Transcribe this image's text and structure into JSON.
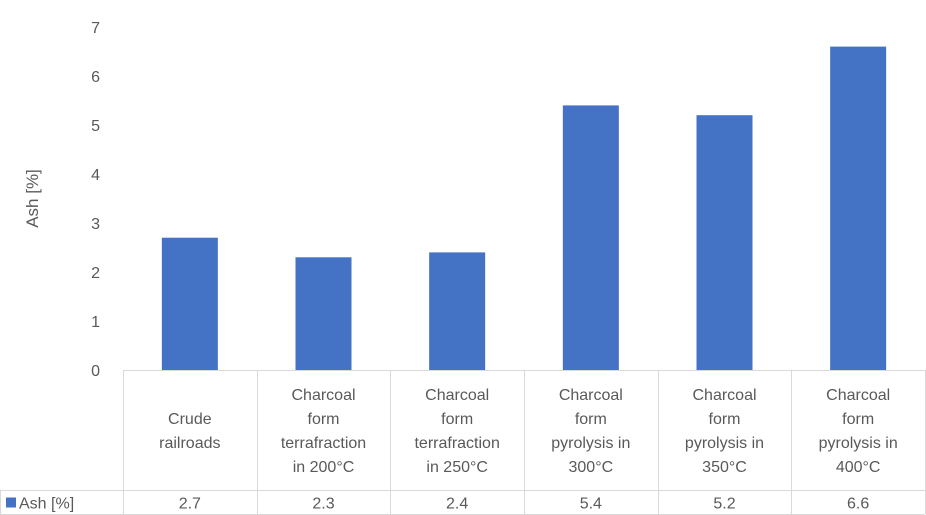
{
  "chart_data": {
    "type": "table",
    "chart_kind": "bar",
    "categories": [
      [
        "Crude",
        "railroads"
      ],
      [
        "Charcoal",
        "form",
        "terrafraction",
        "in 200°C"
      ],
      [
        "Charcoal",
        "form",
        "terrafraction",
        "in 250°C"
      ],
      [
        "Charcoal",
        "form",
        "pyrolysis in",
        "300°C"
      ],
      [
        "Charcoal",
        "form",
        "pyrolysis in",
        "350°C"
      ],
      [
        "Charcoal",
        "form",
        "pyrolysis in",
        "400°C"
      ]
    ],
    "series": [
      {
        "name": "Ash [%]",
        "values": [
          2.7,
          2.3,
          2.4,
          5.4,
          5.2,
          6.6
        ],
        "value_labels": [
          "2.7",
          "2.3",
          "2.4",
          "5.4",
          "5.2",
          "6.6"
        ],
        "color": "#4472C4"
      }
    ],
    "ylabel": "Ash [%]",
    "ylim": [
      0,
      7
    ],
    "yticks": [
      "0",
      "1",
      "2",
      "3",
      "4",
      "5",
      "6",
      "7"
    ],
    "grid": false,
    "legend": "data-table"
  }
}
